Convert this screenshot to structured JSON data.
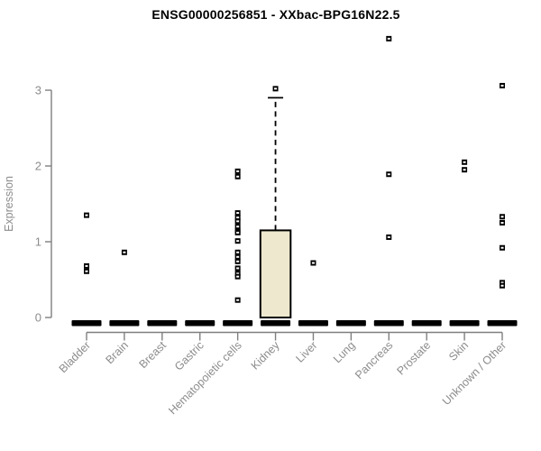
{
  "title": "ENSG00000256851 - XXbac-BPG16N22.5",
  "chart_data": {
    "type": "box",
    "title": "ENSG00000256851 - XXbac-BPG16N22.5",
    "xlabel": "",
    "ylabel": "Expression",
    "ylim": [
      0,
      3
    ],
    "yticks": [
      0,
      1,
      2,
      3
    ],
    "grid": false,
    "legend": false,
    "categories": [
      "Bladder",
      "Brain",
      "Breast",
      "Gastric",
      "Hematopoietic cells",
      "Kidney",
      "Liver",
      "Lung",
      "Pancreas",
      "Prostate",
      "Skin",
      "Unknown / Other"
    ],
    "series": [
      {
        "name": "Bladder",
        "median": 0,
        "q1": 0,
        "q3": 0,
        "whisker_low": 0,
        "whisker_high": 0,
        "outliers": [
          1.35,
          0.68,
          0.61
        ]
      },
      {
        "name": "Brain",
        "median": 0,
        "q1": 0,
        "q3": 0,
        "whisker_low": 0,
        "whisker_high": 0,
        "outliers": [
          0.86
        ]
      },
      {
        "name": "Breast",
        "median": 0,
        "q1": 0,
        "q3": 0,
        "whisker_low": 0,
        "whisker_high": 0,
        "outliers": []
      },
      {
        "name": "Gastric",
        "median": 0,
        "q1": 0,
        "q3": 0,
        "whisker_low": 0,
        "whisker_high": 0,
        "outliers": []
      },
      {
        "name": "Hematopoietic cells",
        "median": 0,
        "q1": 0,
        "q3": 0,
        "whisker_low": 0,
        "whisker_high": 0,
        "outliers": [
          1.93,
          1.86,
          1.38,
          1.32,
          1.27,
          1.2,
          1.14,
          1.12,
          1.01,
          0.86,
          0.8,
          0.74,
          0.65,
          0.58,
          0.54,
          0.23
        ]
      },
      {
        "name": "Kidney",
        "median": 0,
        "q1": 0,
        "q3": 1.15,
        "whisker_low": 0,
        "whisker_high": 2.9,
        "outliers": [
          3.02
        ]
      },
      {
        "name": "Liver",
        "median": 0,
        "q1": 0,
        "q3": 0,
        "whisker_low": 0,
        "whisker_high": 0,
        "outliers": [
          0.72
        ]
      },
      {
        "name": "Lung",
        "median": 0,
        "q1": 0,
        "q3": 0,
        "whisker_low": 0,
        "whisker_high": 0,
        "outliers": []
      },
      {
        "name": "Pancreas",
        "median": 0,
        "q1": 0,
        "q3": 0,
        "whisker_low": 0,
        "whisker_high": 0,
        "outliers": [
          3.68,
          1.89,
          1.06
        ]
      },
      {
        "name": "Prostate",
        "median": 0,
        "q1": 0,
        "q3": 0,
        "whisker_low": 0,
        "whisker_high": 0,
        "outliers": []
      },
      {
        "name": "Skin",
        "median": 0,
        "q1": 0,
        "q3": 0,
        "whisker_low": 0,
        "whisker_high": 0,
        "outliers": [
          2.05,
          1.95
        ]
      },
      {
        "name": "Unknown / Other",
        "median": 0,
        "q1": 0,
        "q3": 0,
        "whisker_low": 0,
        "whisker_high": 0,
        "outliers": [
          3.06,
          1.33,
          1.25,
          0.92,
          0.46,
          0.42
        ]
      }
    ],
    "colors": {
      "box_fill": "#EDE8CE",
      "box_stroke": "#000000",
      "median": "#000000",
      "points": "#000000",
      "point_center": "#FFFFFF",
      "axis": "#7F7F7F",
      "labels": "#8C8C8C",
      "title": "#000000",
      "background": "#FFFFFF"
    }
  }
}
